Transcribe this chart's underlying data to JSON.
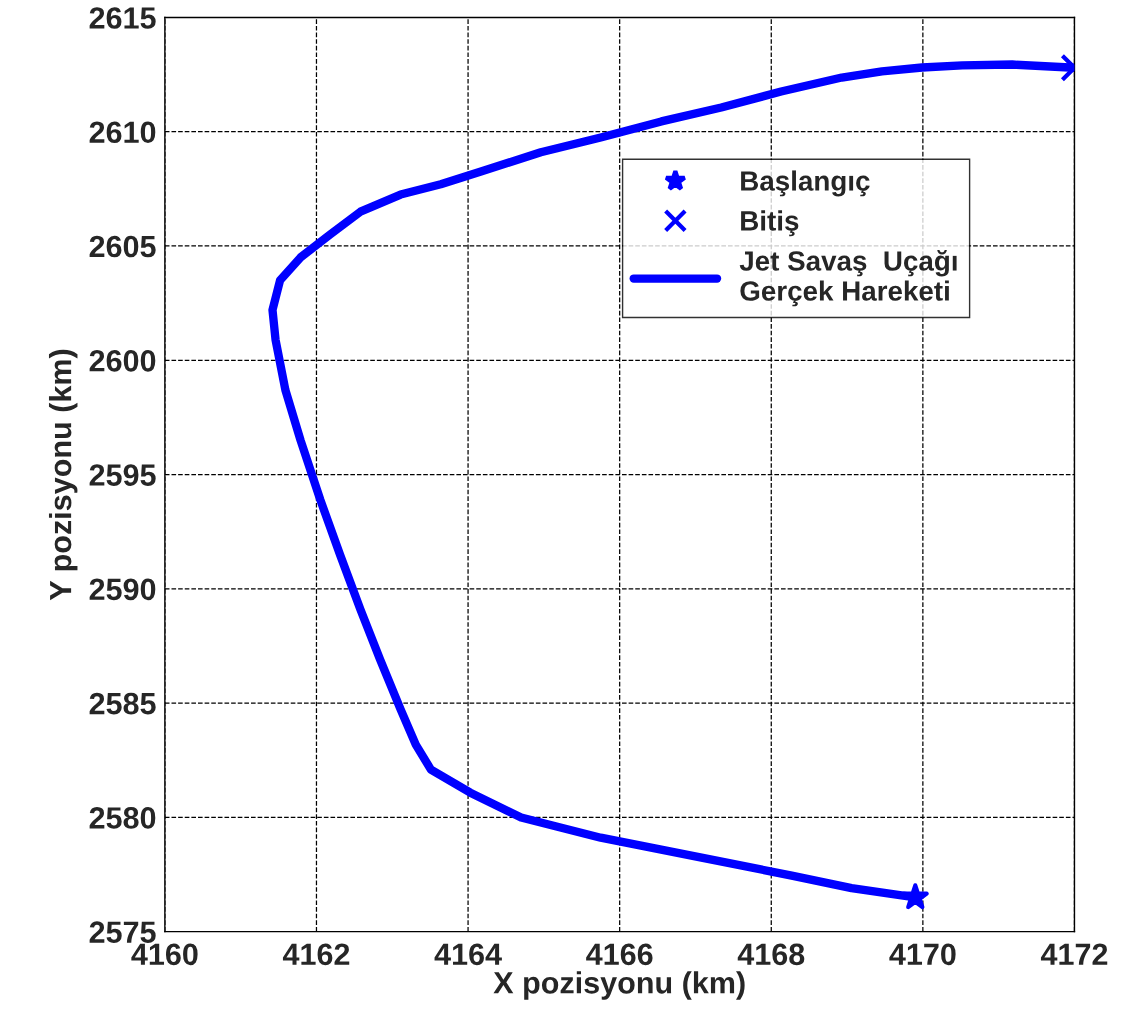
{
  "chart_data": {
    "type": "line",
    "xlabel": "X pozisyonu (km)",
    "ylabel": "Y pozisyonu (km)",
    "xlim": [
      4160,
      4172
    ],
    "xticks": [
      4160,
      4162,
      4164,
      4166,
      4168,
      4170,
      4172
    ],
    "ylim": [
      2575,
      2615
    ],
    "yticks": [
      2575,
      2580,
      2585,
      2590,
      2595,
      2600,
      2605,
      2610,
      2615
    ],
    "grid": true,
    "legend": "top right",
    "series": [
      {
        "name": "Başlangıç",
        "type": "scatter",
        "marker": "star",
        "color": "#0000ff",
        "x": [
          4169.9
        ],
        "values": [
          2576.5
        ]
      },
      {
        "name": "Bitiş",
        "type": "scatter",
        "marker": "cross",
        "color": "#0000ff",
        "x": [
          4172.0
        ],
        "values": [
          2612.8
        ]
      },
      {
        "name": "Jet Savaş  Uçağı\nGerçek Hareketi",
        "marker": "none",
        "line_style": "solid",
        "color": "#0000ff",
        "x": [
          4169.9,
          4169.06,
          4168.27,
          4167.08,
          4165.75,
          4164.7,
          4164.03,
          4163.51,
          4163.31,
          4163.11,
          4162.84,
          4162.58,
          4162.31,
          4162.05,
          4161.79,
          4161.59,
          4161.46,
          4161.42,
          4161.52,
          4161.79,
          4162.18,
          4162.58,
          4163.11,
          4163.64,
          4164.17,
          4164.96,
          4165.75,
          4166.55,
          4167.34,
          4168.13,
          4168.93,
          4169.46,
          4169.99,
          4170.52,
          4171.18,
          4172.0
        ],
        "values": [
          2576.5,
          2576.9,
          2577.45,
          2578.24,
          2579.11,
          2579.99,
          2581.08,
          2582.09,
          2583.18,
          2584.72,
          2586.9,
          2589.09,
          2591.5,
          2593.9,
          2596.5,
          2598.7,
          2600.9,
          2602.2,
          2603.5,
          2604.5,
          2605.5,
          2606.5,
          2607.25,
          2607.7,
          2608.26,
          2609.1,
          2609.75,
          2610.45,
          2611.06,
          2611.76,
          2612.37,
          2612.64,
          2612.81,
          2612.9,
          2612.94,
          2612.8
        ]
      }
    ]
  }
}
